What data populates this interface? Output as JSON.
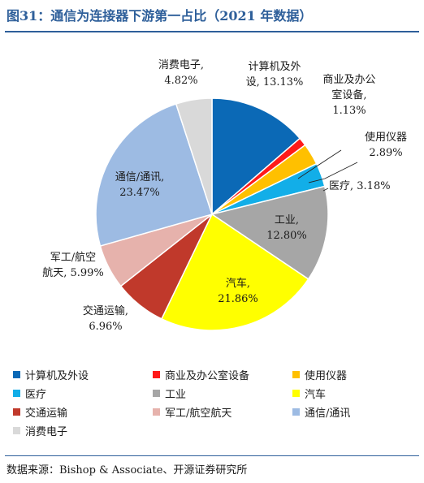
{
  "title": "图31：通信为连接器下游第一占比（2021 年数据）",
  "source": "数据来源：Bishop & Associate、开源证券研究所",
  "chart_data": {
    "type": "pie",
    "title": "图31：通信为连接器下游第一占比（2021 年数据）",
    "start_angle_deg": 0,
    "direction": "clockwise",
    "slices": [
      {
        "name": "计算机及外设",
        "value": 13.13,
        "label_lines": [
          "计算机及外",
          "设, 13.13%"
        ],
        "color": "#0b69b6"
      },
      {
        "name": "商业及办公室设备",
        "value": 1.13,
        "label_lines": [
          "商业及办公",
          "室设备,",
          "1.13%"
        ],
        "color": "#ff1a1a"
      },
      {
        "name": "使用仪器",
        "value": 2.89,
        "label_lines": [
          "使用仪器",
          "2.89%"
        ],
        "color": "#ffc000"
      },
      {
        "name": "医疗",
        "value": 3.18,
        "label_lines": [
          "医疗, 3.18%"
        ],
        "color": "#12aee8"
      },
      {
        "name": "工业",
        "value": 12.8,
        "label_lines": [
          "工业,",
          "12.80%"
        ],
        "color": "#a6a6a6"
      },
      {
        "name": "汽车",
        "value": 21.86,
        "label_lines": [
          "汽车,",
          "21.86%"
        ],
        "color": "#ffff00"
      },
      {
        "name": "交通运输",
        "value": 6.96,
        "label_lines": [
          "交通运输,",
          "6.96%"
        ],
        "color": "#c0392b"
      },
      {
        "name": "军工/航空航天",
        "value": 5.99,
        "label_lines": [
          "军工/航空",
          "航天, 5.99%"
        ],
        "color": "#e6b2ac"
      },
      {
        "name": "通信/通讯",
        "value": 23.47,
        "label_lines": [
          "通信/通讯,",
          "23.47%"
        ],
        "color": "#9dbbe3"
      },
      {
        "name": "消费电子",
        "value": 4.82,
        "label_lines": [
          "消费电子,",
          "4.82%"
        ],
        "color": "#d9d9d9"
      }
    ],
    "legend": {
      "placement": "bottom",
      "items": [
        "计算机及外设",
        "商业及办公室设备",
        "使用仪器",
        "医疗",
        "工业",
        "汽车",
        "交通运输",
        "军工/航空航天",
        "通信/通讯",
        "消费电子"
      ]
    }
  }
}
